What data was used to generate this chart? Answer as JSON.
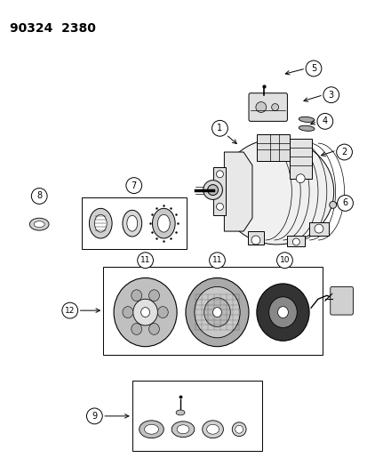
{
  "title": "90324  2380",
  "bg": "#ffffff",
  "fig_width": 4.14,
  "fig_height": 5.33,
  "dpi": 100
}
